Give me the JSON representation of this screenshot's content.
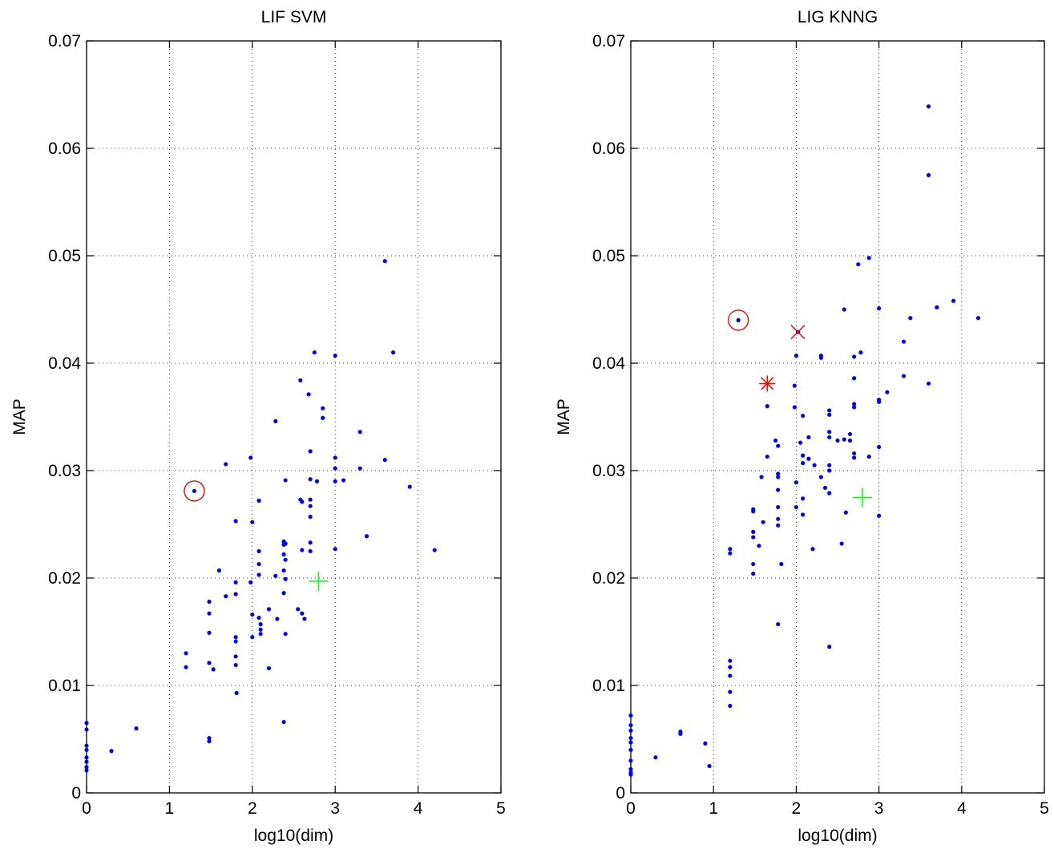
{
  "chart_data": [
    {
      "type": "scatter",
      "title": "LIF SVM",
      "xlabel": "log10(dim)",
      "ylabel": "MAP",
      "xlim": [
        0,
        5
      ],
      "ylim": [
        0,
        0.07
      ],
      "xticks": [
        "0",
        "1",
        "2",
        "3",
        "4",
        "5"
      ],
      "yticks": [
        "0",
        "0.01",
        "0.02",
        "0.03",
        "0.04",
        "0.05",
        "0.06",
        "0.07"
      ],
      "grid": true,
      "series": [
        {
          "color": "#0000ff",
          "marker": "dot",
          "points": [
            [
              0,
              0.0065
            ],
            [
              0,
              0.0059
            ],
            [
              0,
              0.0044
            ],
            [
              0,
              0.004
            ],
            [
              0,
              0.0033
            ],
            [
              0,
              0.0029
            ],
            [
              0,
              0.0024
            ],
            [
              0,
              0.0021
            ],
            [
              0.3,
              0.0039
            ],
            [
              0.6,
              0.006
            ],
            [
              1.3,
              0.0281
            ],
            [
              1.2,
              0.013
            ],
            [
              1.2,
              0.0117
            ],
            [
              1.48,
              0.0178
            ],
            [
              1.48,
              0.0167
            ],
            [
              1.48,
              0.0149
            ],
            [
              1.48,
              0.0121
            ],
            [
              1.48,
              0.0051
            ],
            [
              1.48,
              0.0048
            ],
            [
              1.53,
              0.0115
            ],
            [
              1.6,
              0.0207
            ],
            [
              1.68,
              0.0306
            ],
            [
              1.68,
              0.0183
            ],
            [
              1.8,
              0.0253
            ],
            [
              1.8,
              0.0196
            ],
            [
              1.8,
              0.0185
            ],
            [
              1.8,
              0.0145
            ],
            [
              1.8,
              0.0141
            ],
            [
              1.8,
              0.0127
            ],
            [
              1.8,
              0.0119
            ],
            [
              1.81,
              0.0093
            ],
            [
              1.98,
              0.0312
            ],
            [
              2.0,
              0.0252
            ],
            [
              1.98,
              0.0196
            ],
            [
              2.0,
              0.0166
            ],
            [
              2.0,
              0.0145
            ],
            [
              2.08,
              0.0272
            ],
            [
              2.08,
              0.0225
            ],
            [
              2.08,
              0.0213
            ],
            [
              2.08,
              0.0203
            ],
            [
              2.08,
              0.0163
            ],
            [
              2.1,
              0.0157
            ],
            [
              2.1,
              0.0152
            ],
            [
              2.1,
              0.0148
            ],
            [
              2.2,
              0.0171
            ],
            [
              2.2,
              0.0116
            ],
            [
              2.28,
              0.0346
            ],
            [
              2.28,
              0.0202
            ],
            [
              2.3,
              0.0162
            ],
            [
              2.38,
              0.0234
            ],
            [
              2.38,
              0.0231
            ],
            [
              2.38,
              0.0222
            ],
            [
              2.38,
              0.0207
            ],
            [
              2.38,
              0.0186
            ],
            [
              2.38,
              0.0066
            ],
            [
              2.4,
              0.0291
            ],
            [
              2.4,
              0.0232
            ],
            [
              2.4,
              0.0217
            ],
            [
              2.4,
              0.0199
            ],
            [
              2.4,
              0.0148
            ],
            [
              2.55,
              0.0171
            ],
            [
              2.58,
              0.0384
            ],
            [
              2.58,
              0.0273
            ],
            [
              2.6,
              0.0167
            ],
            [
              2.63,
              0.0162
            ],
            [
              2.6,
              0.0226
            ],
            [
              2.6,
              0.0271
            ],
            [
              2.68,
              0.0371
            ],
            [
              2.7,
              0.0318
            ],
            [
              2.7,
              0.0292
            ],
            [
              2.7,
              0.0273
            ],
            [
              2.7,
              0.0267
            ],
            [
              2.7,
              0.0257
            ],
            [
              2.7,
              0.0225
            ],
            [
              2.75,
              0.041
            ],
            [
              2.78,
              0.029
            ],
            [
              2.7,
              0.0233
            ],
            [
              2.85,
              0.0358
            ],
            [
              2.85,
              0.0349
            ],
            [
              3.0,
              0.0407
            ],
            [
              3.0,
              0.0312
            ],
            [
              3.0,
              0.0302
            ],
            [
              3.0,
              0.029
            ],
            [
              3.0,
              0.0227
            ],
            [
              3.1,
              0.0291
            ],
            [
              3.3,
              0.0336
            ],
            [
              3.3,
              0.0302
            ],
            [
              3.38,
              0.0239
            ],
            [
              3.6,
              0.0495
            ],
            [
              3.6,
              0.031
            ],
            [
              3.7,
              0.041
            ],
            [
              3.9,
              0.0285
            ],
            [
              4.2,
              0.0226
            ]
          ]
        },
        {
          "color": "#ff0000",
          "marker": "circle",
          "points": [
            [
              1.3,
              0.0281
            ]
          ]
        },
        {
          "color": "#00ff00",
          "marker": "plus",
          "points": [
            [
              2.8,
              0.0197
            ]
          ]
        }
      ]
    },
    {
      "type": "scatter",
      "title": "LIG KNNG",
      "xlabel": "log10(dim)",
      "ylabel": "MAP",
      "xlim": [
        0,
        5
      ],
      "ylim": [
        0,
        0.07
      ],
      "xticks": [
        "0",
        "1",
        "2",
        "3",
        "4",
        "5"
      ],
      "yticks": [
        "0",
        "0.01",
        "0.02",
        "0.03",
        "0.04",
        "0.05",
        "0.06",
        "0.07"
      ],
      "grid": true,
      "series": [
        {
          "color": "#0000ff",
          "marker": "dot",
          "points": [
            [
              0,
              0.0072
            ],
            [
              0,
              0.0063
            ],
            [
              0,
              0.0058
            ],
            [
              0,
              0.0051
            ],
            [
              0,
              0.0047
            ],
            [
              0,
              0.004
            ],
            [
              0,
              0.003
            ],
            [
              0,
              0.0022
            ],
            [
              0,
              0.0019
            ],
            [
              0,
              0.0017
            ],
            [
              0.3,
              0.0033
            ],
            [
              0.6,
              0.0057
            ],
            [
              0.6,
              0.0055
            ],
            [
              0.9,
              0.0046
            ],
            [
              0.95,
              0.0025
            ],
            [
              1.2,
              0.0227
            ],
            [
              1.2,
              0.0223
            ],
            [
              1.2,
              0.0123
            ],
            [
              1.2,
              0.0117
            ],
            [
              1.2,
              0.0109
            ],
            [
              1.2,
              0.0094
            ],
            [
              1.2,
              0.0081
            ],
            [
              1.3,
              0.044
            ],
            [
              1.48,
              0.0264
            ],
            [
              1.48,
              0.0262
            ],
            [
              1.48,
              0.0243
            ],
            [
              1.48,
              0.0238
            ],
            [
              1.48,
              0.0213
            ],
            [
              1.48,
              0.0204
            ],
            [
              1.55,
              0.023
            ],
            [
              1.58,
              0.0294
            ],
            [
              1.6,
              0.0252
            ],
            [
              1.65,
              0.036
            ],
            [
              1.65,
              0.0313
            ],
            [
              1.75,
              0.0328
            ],
            [
              1.78,
              0.0323
            ],
            [
              1.78,
              0.0297
            ],
            [
              1.78,
              0.0294
            ],
            [
              1.78,
              0.0282
            ],
            [
              1.78,
              0.0266
            ],
            [
              1.78,
              0.0255
            ],
            [
              1.78,
              0.0249
            ],
            [
              1.78,
              0.0157
            ],
            [
              1.82,
              0.0213
            ],
            [
              1.98,
              0.0379
            ],
            [
              1.98,
              0.0359
            ],
            [
              2.0,
              0.0407
            ],
            [
              2.0,
              0.0289
            ],
            [
              2.0,
              0.0266
            ],
            [
              2.05,
              0.0326
            ],
            [
              2.08,
              0.0351
            ],
            [
              2.08,
              0.0314
            ],
            [
              2.08,
              0.0307
            ],
            [
              2.08,
              0.0274
            ],
            [
              2.08,
              0.0259
            ],
            [
              2.15,
              0.0331
            ],
            [
              2.15,
              0.0311
            ],
            [
              2.2,
              0.0227
            ],
            [
              2.22,
              0.0305
            ],
            [
              2.3,
              0.0407
            ],
            [
              2.3,
              0.0405
            ],
            [
              2.3,
              0.0294
            ],
            [
              2.35,
              0.0284
            ],
            [
              2.4,
              0.0356
            ],
            [
              2.4,
              0.0352
            ],
            [
              2.4,
              0.0336
            ],
            [
              2.4,
              0.0331
            ],
            [
              2.4,
              0.0305
            ],
            [
              2.4,
              0.03
            ],
            [
              2.4,
              0.0279
            ],
            [
              2.4,
              0.0136
            ],
            [
              2.5,
              0.0328
            ],
            [
              2.55,
              0.0232
            ],
            [
              2.58,
              0.045
            ],
            [
              2.58,
              0.0329
            ],
            [
              2.6,
              0.0261
            ],
            [
              2.65,
              0.0334
            ],
            [
              2.65,
              0.0328
            ],
            [
              2.7,
              0.0406
            ],
            [
              2.7,
              0.0386
            ],
            [
              2.7,
              0.0362
            ],
            [
              2.7,
              0.0359
            ],
            [
              2.7,
              0.0316
            ],
            [
              2.7,
              0.0312
            ],
            [
              2.75,
              0.0492
            ],
            [
              2.78,
              0.041
            ],
            [
              2.88,
              0.0498
            ],
            [
              2.88,
              0.0313
            ],
            [
              3.0,
              0.0451
            ],
            [
              3.0,
              0.0366
            ],
            [
              3.0,
              0.0364
            ],
            [
              3.0,
              0.0322
            ],
            [
              3.0,
              0.0258
            ],
            [
              3.1,
              0.0373
            ],
            [
              3.3,
              0.042
            ],
            [
              3.3,
              0.0388
            ],
            [
              3.38,
              0.0442
            ],
            [
              3.6,
              0.0639
            ],
            [
              3.6,
              0.0575
            ],
            [
              3.6,
              0.0381
            ],
            [
              3.7,
              0.0452
            ],
            [
              3.9,
              0.0458
            ],
            [
              4.2,
              0.0442
            ],
            [
              2.02,
              0.0429
            ]
          ]
        },
        {
          "color": "#ff0000",
          "marker": "circle",
          "points": [
            [
              1.3,
              0.044
            ]
          ]
        },
        {
          "color": "#ff0000",
          "marker": "x",
          "points": [
            [
              2.02,
              0.0429
            ]
          ]
        },
        {
          "color": "#ff0000",
          "marker": "asterisk",
          "points": [
            [
              1.65,
              0.0381
            ]
          ]
        },
        {
          "color": "#00ff00",
          "marker": "plus",
          "points": [
            [
              2.8,
              0.0275
            ]
          ]
        }
      ]
    }
  ]
}
